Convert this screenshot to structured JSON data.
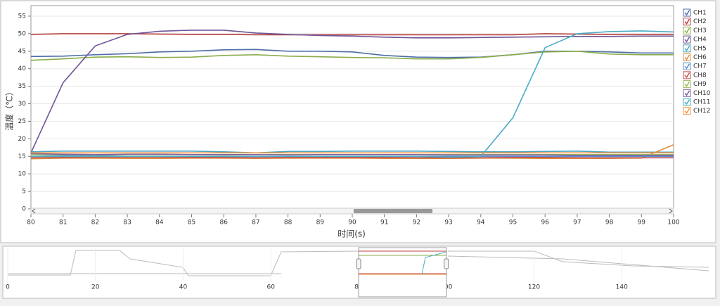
{
  "chart_data": {
    "type": "line",
    "x_label": "时间(s)",
    "y_label": "温度（℃）",
    "x": [
      80,
      81,
      82,
      83,
      84,
      85,
      86,
      87,
      88,
      89,
      90,
      91,
      92,
      93,
      94,
      95,
      96,
      97,
      98,
      99,
      100
    ],
    "xlim": [
      80,
      100
    ],
    "xticks": [
      80,
      81,
      82,
      83,
      84,
      85,
      86,
      87,
      88,
      89,
      90,
      91,
      92,
      93,
      94,
      95,
      96,
      97,
      98,
      99,
      100
    ],
    "ylim": [
      0,
      58
    ],
    "yticks": [
      0,
      5,
      10,
      15,
      20,
      25,
      30,
      35,
      40,
      45,
      50,
      55
    ],
    "grid": true,
    "legend": "right",
    "series": [
      {
        "name": "CH1",
        "color": "#4e6ea8",
        "values": [
          43.5,
          43.6,
          44,
          44.3,
          44.8,
          45,
          45.4,
          45.5,
          45,
          45,
          44.8,
          43.8,
          43.3,
          43.2,
          43.3,
          44,
          45,
          45,
          44.8,
          44.5,
          44.5
        ]
      },
      {
        "name": "CH2",
        "color": "#b8413f",
        "values": [
          49.8,
          50,
          50,
          50,
          49.9,
          49.8,
          49.8,
          49.7,
          49.7,
          49.7,
          49.7,
          49.7,
          49.7,
          49.7,
          49.7,
          49.7,
          50,
          49.9,
          49.8,
          49.8,
          49.8
        ]
      },
      {
        "name": "CH3",
        "color": "#8aad4b",
        "values": [
          42.4,
          42.8,
          43.3,
          43.4,
          43.2,
          43.3,
          43.8,
          44,
          43.6,
          43.4,
          43.2,
          43.1,
          42.8,
          42.8,
          43.2,
          44,
          44.8,
          45,
          44.2,
          44,
          44
        ]
      },
      {
        "name": "CH4",
        "color": "#6f5597",
        "values": [
          16,
          36,
          46.5,
          49.8,
          50.7,
          51,
          51,
          50.2,
          49.8,
          49.5,
          49.3,
          49,
          48.8,
          48.8,
          48.9,
          49,
          49.1,
          49.2,
          49.2,
          49.3,
          49.3
        ]
      },
      {
        "name": "CH5",
        "color": "#4aa5c0",
        "values": [
          16.3,
          16.5,
          16.5,
          16.5,
          16.5,
          16.5,
          16.3,
          16,
          16.4,
          16.4,
          16.5,
          16.5,
          16.5,
          16.4,
          16.3,
          16.3,
          16.4,
          16.5,
          16.2,
          16.2,
          16.2
        ]
      },
      {
        "name": "CH6",
        "color": "#e08d3b",
        "values": [
          14.3,
          14.5,
          14.5,
          14.4,
          14.4,
          14.5,
          14.5,
          14.4,
          14.5,
          14.5,
          14.5,
          14.4,
          14.4,
          14.4,
          14.5,
          14.5,
          14.4,
          14.4,
          14.4,
          14.5,
          18.3
        ]
      },
      {
        "name": "CH7",
        "color": "#5b8fd0",
        "values": [
          15,
          15.2,
          15.2,
          15,
          14.8,
          14.8,
          15,
          15,
          15,
          15,
          15,
          15,
          15,
          15,
          15,
          15,
          15,
          15,
          15,
          15,
          15
        ]
      },
      {
        "name": "CH8",
        "color": "#c0504d",
        "values": [
          14.6,
          14.7,
          14.8,
          14.8,
          14.8,
          14.7,
          14.7,
          14.6,
          14.7,
          14.7,
          14.7,
          14.7,
          14.6,
          14.6,
          14.6,
          14.7,
          14.7,
          14.6,
          14.6,
          14.6,
          14.6
        ]
      },
      {
        "name": "CH9",
        "color": "#9bbb59",
        "values": [
          15.5,
          15.5,
          15.4,
          15.5,
          15.5,
          15.5,
          15.4,
          15.5,
          15.5,
          15.5,
          15.5,
          15.5,
          15.5,
          15.5,
          15.5,
          15.5,
          15.5,
          15.5,
          15.5,
          15.5,
          15.5
        ]
      },
      {
        "name": "CH10",
        "color": "#8064a2",
        "values": [
          15.8,
          15.6,
          15.5,
          15.6,
          15.6,
          15.5,
          15.5,
          15.5,
          15.4,
          15.5,
          15.5,
          15.5,
          15.5,
          15.4,
          15.4,
          15.4,
          15.4,
          15.3,
          15.3,
          15.3,
          15.3
        ]
      },
      {
        "name": "CH11",
        "color": "#4bacc6",
        "values": [
          15,
          15,
          15,
          15,
          15,
          15,
          15,
          15,
          15,
          15,
          15,
          15,
          15,
          14.8,
          15,
          26,
          46,
          50,
          50.6,
          50.8,
          50.5
        ]
      },
      {
        "name": "CH12",
        "color": "#f79646",
        "values": [
          16,
          16,
          16,
          16,
          16,
          16,
          16,
          16,
          16,
          16,
          16,
          16,
          16,
          16,
          16,
          16,
          16,
          16,
          16,
          16,
          16
        ]
      }
    ],
    "navigator": {
      "xlim": [
        0,
        160
      ],
      "xticks": [
        0,
        20,
        40,
        60,
        80,
        100,
        120,
        140
      ],
      "window": [
        80,
        100
      ]
    }
  }
}
